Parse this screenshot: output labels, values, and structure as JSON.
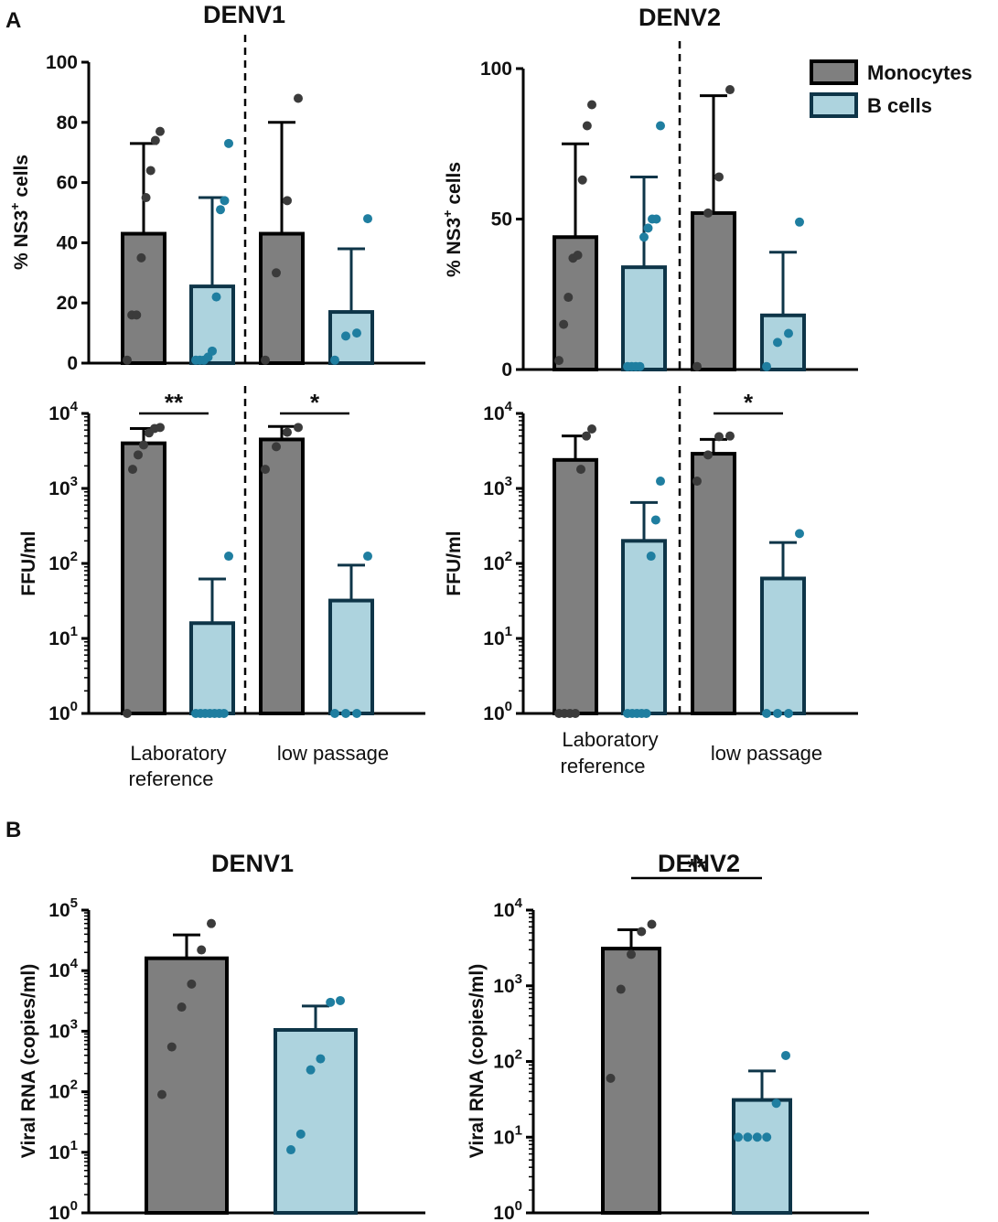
{
  "panel_labels": [
    "A",
    "B"
  ],
  "legend": {
    "monocytes": "Monocytes",
    "bcells": "B cells"
  },
  "colors": {
    "monocyte_fill": "#7f7f7f",
    "bcell_fill": "#add3de",
    "monocyte_outline": "#000000",
    "bcell_outline": "#0e3548",
    "monocyte_dot": "#3b3b3b",
    "bcell_dot": "#1f7ea0"
  },
  "categories": {
    "lab_ref_line1": "Laboratory",
    "lab_ref_line2": "reference",
    "low_passage": "low passage"
  },
  "chart_data": [
    {
      "id": "A-DENV1-NS3",
      "type": "bar",
      "title": "DENV1",
      "ylabel": "% NS3+ cells",
      "yscale": "linear",
      "ylim": [
        0,
        100
      ],
      "yticks": [
        "0",
        "20",
        "40",
        "60",
        "80",
        "100"
      ],
      "groups": [
        "Laboratory reference",
        "low passage"
      ],
      "series": [
        {
          "name": "Monocytes",
          "group": "Laboratory reference",
          "mean": 43,
          "sd_upper": 73,
          "points": [
            1,
            16,
            16,
            35,
            55,
            64,
            74,
            77
          ]
        },
        {
          "name": "B cells",
          "group": "Laboratory reference",
          "mean": 25.5,
          "sd_upper": 55,
          "points": [
            1,
            1,
            1,
            2,
            4,
            22,
            51,
            54,
            73
          ]
        },
        {
          "name": "Monocytes",
          "group": "low passage",
          "mean": 43,
          "sd_upper": 80,
          "points": [
            1,
            30,
            54,
            88
          ]
        },
        {
          "name": "B cells",
          "group": "low passage",
          "mean": 17,
          "sd_upper": 38,
          "points": [
            1,
            9,
            10,
            48
          ]
        }
      ]
    },
    {
      "id": "A-DENV2-NS3",
      "type": "bar",
      "title": "DENV2",
      "ylabel": "% NS3+ cells",
      "yscale": "linear",
      "ylim": [
        0,
        100
      ],
      "yticks": [
        "0",
        "50",
        "100"
      ],
      "groups": [
        "Laboratory reference",
        "low passage"
      ],
      "series": [
        {
          "name": "Monocytes",
          "group": "Laboratory reference",
          "mean": 44,
          "sd_upper": 75,
          "points": [
            3,
            15,
            24,
            37,
            38,
            63,
            81,
            88
          ]
        },
        {
          "name": "B cells",
          "group": "Laboratory reference",
          "mean": 34,
          "sd_upper": 64,
          "points": [
            1,
            1,
            1,
            1,
            44,
            47,
            50,
            50,
            81
          ]
        },
        {
          "name": "Monocytes",
          "group": "low passage",
          "mean": 52,
          "sd_upper": 91,
          "points": [
            1,
            52,
            64,
            93
          ]
        },
        {
          "name": "B cells",
          "group": "low passage",
          "mean": 18,
          "sd_upper": 39,
          "points": [
            1,
            9,
            12,
            49
          ]
        }
      ]
    },
    {
      "id": "A-DENV1-FFU",
      "type": "bar",
      "title": "DENV1",
      "ylabel": "FFU/ml",
      "yscale": "log",
      "ylim": [
        1,
        10000
      ],
      "yticks": [
        "10^0",
        "10^1",
        "10^2",
        "10^3",
        "10^4"
      ],
      "significance": [
        {
          "group": "Laboratory reference",
          "label": "**"
        },
        {
          "group": "low passage",
          "label": "*"
        }
      ],
      "series": [
        {
          "name": "Monocytes",
          "group": "Laboratory reference",
          "mean": 4000,
          "sd_upper": 6300,
          "points": [
            1,
            1800,
            2800,
            3800,
            5500,
            6300,
            6500
          ]
        },
        {
          "name": "B cells",
          "group": "Laboratory reference",
          "mean": 16,
          "sd_upper": 62,
          "points": [
            1,
            1,
            1,
            1,
            1,
            1,
            1,
            125
          ]
        },
        {
          "name": "Monocytes",
          "group": "low passage",
          "mean": 4500,
          "sd_upper": 6700,
          "points": [
            1800,
            3600,
            5600,
            6500
          ]
        },
        {
          "name": "B cells",
          "group": "low passage",
          "mean": 32,
          "sd_upper": 95,
          "points": [
            1,
            1,
            1,
            125
          ]
        }
      ]
    },
    {
      "id": "A-DENV2-FFU",
      "type": "bar",
      "title": "DENV2",
      "ylabel": "FFU/ml",
      "yscale": "log",
      "ylim": [
        1,
        10000
      ],
      "yticks": [
        "10^0",
        "10^1",
        "10^2",
        "10^3",
        "10^4"
      ],
      "significance": [
        {
          "group": "low passage",
          "label": "*"
        }
      ],
      "series": [
        {
          "name": "Monocytes",
          "group": "Laboratory reference",
          "mean": 2400,
          "sd_upper": 5000,
          "points": [
            1,
            1,
            1,
            1,
            1800,
            5000,
            6200
          ]
        },
        {
          "name": "B cells",
          "group": "Laboratory reference",
          "mean": 200,
          "sd_upper": 650,
          "points": [
            1,
            1,
            1,
            1,
            1,
            125,
            380,
            1250
          ]
        },
        {
          "name": "Monocytes",
          "group": "low passage",
          "mean": 2900,
          "sd_upper": 4500,
          "points": [
            1250,
            2800,
            4900,
            5000
          ]
        },
        {
          "name": "B cells",
          "group": "low passage",
          "mean": 63,
          "sd_upper": 190,
          "points": [
            1,
            1,
            1,
            250
          ]
        }
      ]
    },
    {
      "id": "B-DENV1-RNA",
      "type": "bar",
      "title": "DENV1",
      "ylabel": "Viral RNA (copies/ml)",
      "yscale": "log",
      "ylim": [
        1,
        100000
      ],
      "yticks": [
        "10^0",
        "10^1",
        "10^2",
        "10^3",
        "10^4",
        "10^5"
      ],
      "series": [
        {
          "name": "Monocytes",
          "mean": 16000,
          "sd_upper": 39000,
          "points": [
            90,
            550,
            2500,
            6000,
            22000,
            60000
          ]
        },
        {
          "name": "B cells",
          "mean": 1050,
          "sd_upper": 2600,
          "points": [
            11,
            20,
            230,
            350,
            3000,
            3200
          ]
        }
      ]
    },
    {
      "id": "B-DENV2-RNA",
      "type": "bar",
      "title": "DENV2",
      "ylabel": "Viral RNA (copies/ml)",
      "yscale": "log",
      "ylim": [
        1,
        10000
      ],
      "yticks": [
        "10^0",
        "10^1",
        "10^2",
        "10^3",
        "10^4"
      ],
      "significance": [
        {
          "label": "**"
        }
      ],
      "series": [
        {
          "name": "Monocytes",
          "mean": 3100,
          "sd_upper": 5500,
          "points": [
            60,
            900,
            2600,
            5200,
            6500
          ]
        },
        {
          "name": "B cells",
          "mean": 31,
          "sd_upper": 75,
          "points": [
            10,
            10,
            10,
            10,
            28,
            120
          ]
        }
      ]
    }
  ]
}
